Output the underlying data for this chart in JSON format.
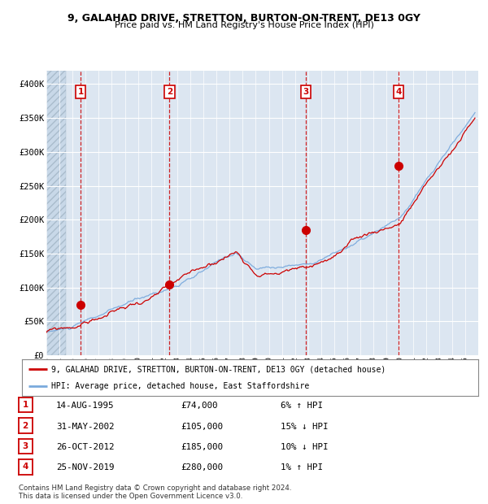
{
  "title1": "9, GALAHAD DRIVE, STRETTON, BURTON-ON-TRENT, DE13 0GY",
  "title2": "Price paid vs. HM Land Registry's House Price Index (HPI)",
  "legend_line1": "9, GALAHAD DRIVE, STRETTON, BURTON-ON-TRENT, DE13 0GY (detached house)",
  "legend_line2": "HPI: Average price, detached house, East Staffordshire",
  "footnote": "Contains HM Land Registry data © Crown copyright and database right 2024.\nThis data is licensed under the Open Government Licence v3.0.",
  "transactions": [
    {
      "num": 1,
      "date": "14-AUG-1995",
      "price": 74000,
      "pct": "6%",
      "dir": "↑",
      "year": 1995.617
    },
    {
      "num": 2,
      "date": "31-MAY-2002",
      "price": 105000,
      "pct": "15%",
      "dir": "↓",
      "year": 2002.414
    },
    {
      "num": 3,
      "date": "26-OCT-2012",
      "price": 185000,
      "pct": "10%",
      "dir": "↓",
      "year": 2012.819
    },
    {
      "num": 4,
      "date": "25-NOV-2019",
      "price": 280000,
      "pct": "1%",
      "dir": "↑",
      "year": 2019.899
    }
  ],
  "hpi_color": "#7aaadd",
  "price_color": "#cc0000",
  "plot_bg": "#dce6f1",
  "grid_color": "#ffffff",
  "vline_color": "#cc0000",
  "marker_color": "#cc0000",
  "ylim": [
    0,
    420000
  ],
  "xlim_start": 1993.0,
  "xlim_end": 2026.0,
  "yticks": [
    0,
    50000,
    100000,
    150000,
    200000,
    250000,
    300000,
    350000,
    400000
  ],
  "ytick_labels": [
    "£0",
    "£50K",
    "£100K",
    "£150K",
    "£200K",
    "£250K",
    "£300K",
    "£350K",
    "£400K"
  ]
}
